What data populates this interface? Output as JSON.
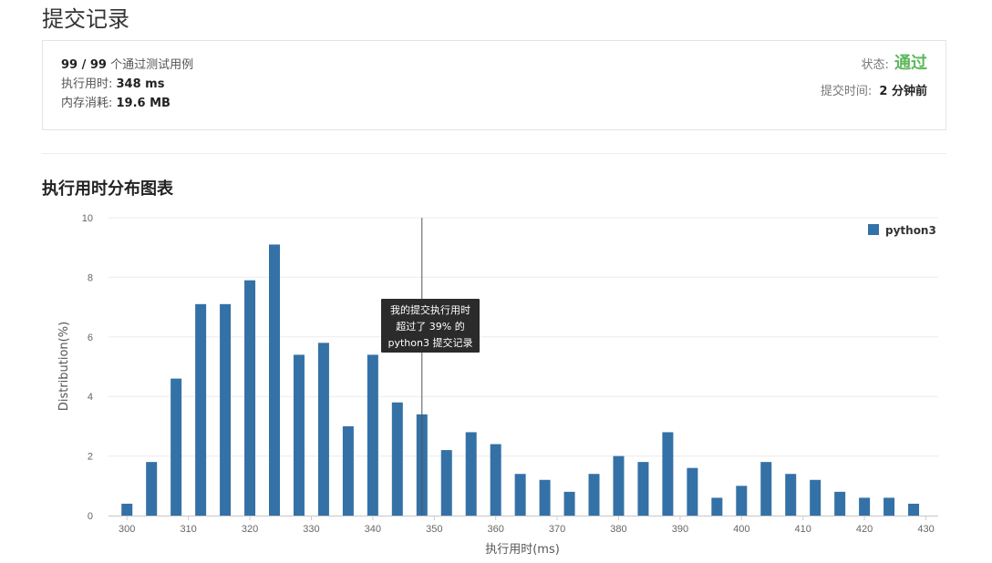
{
  "page": {
    "title": "提交记录"
  },
  "summary": {
    "cases_passed": "99 / 99",
    "cases_label": " 个通过测试用例",
    "runtime_label": "执行用时: ",
    "runtime_value": "348 ms",
    "memory_label": "内存消耗: ",
    "memory_value": "19.6 MB",
    "status_label": "状态: ",
    "status_value": "通过",
    "submit_time_label": "提交时间: ",
    "submit_time_value": "2 分钟前",
    "status_color": "#5cb85c"
  },
  "section": {
    "title": "执行用时分布图表"
  },
  "chart_data": {
    "type": "bar",
    "xlabel": "执行用时(ms)",
    "ylabel": "Distribution(%)",
    "ylim": [
      0,
      10
    ],
    "xlim": [
      297,
      432
    ],
    "yticks": [
      0,
      2,
      4,
      6,
      8,
      10
    ],
    "xticks": [
      300,
      310,
      320,
      330,
      340,
      350,
      360,
      370,
      380,
      390,
      400,
      410,
      420,
      430
    ],
    "grid": true,
    "legend_position": "top-right",
    "series": [
      {
        "name": "python3",
        "color": "#3471a6",
        "x": [
          300,
          304,
          308,
          312,
          316,
          320,
          324,
          328,
          332,
          336,
          340,
          344,
          348,
          352,
          356,
          360,
          364,
          368,
          372,
          376,
          380,
          384,
          388,
          392,
          396,
          400,
          404,
          408,
          412,
          416,
          420,
          424,
          428
        ],
        "values": [
          0.4,
          1.8,
          4.6,
          7.1,
          7.1,
          7.9,
          9.1,
          5.4,
          5.8,
          3.0,
          5.4,
          3.8,
          3.4,
          2.2,
          2.8,
          2.4,
          1.4,
          1.2,
          0.8,
          1.4,
          2.0,
          1.8,
          2.8,
          1.6,
          0.6,
          1.0,
          1.8,
          1.4,
          1.2,
          0.8,
          0.6,
          0.6,
          0.4
        ]
      }
    ],
    "marker_x": 348,
    "tooltip": {
      "lines": [
        "我的提交执行用时",
        "超过了 39% 的",
        "python3 提交记录"
      ]
    }
  }
}
